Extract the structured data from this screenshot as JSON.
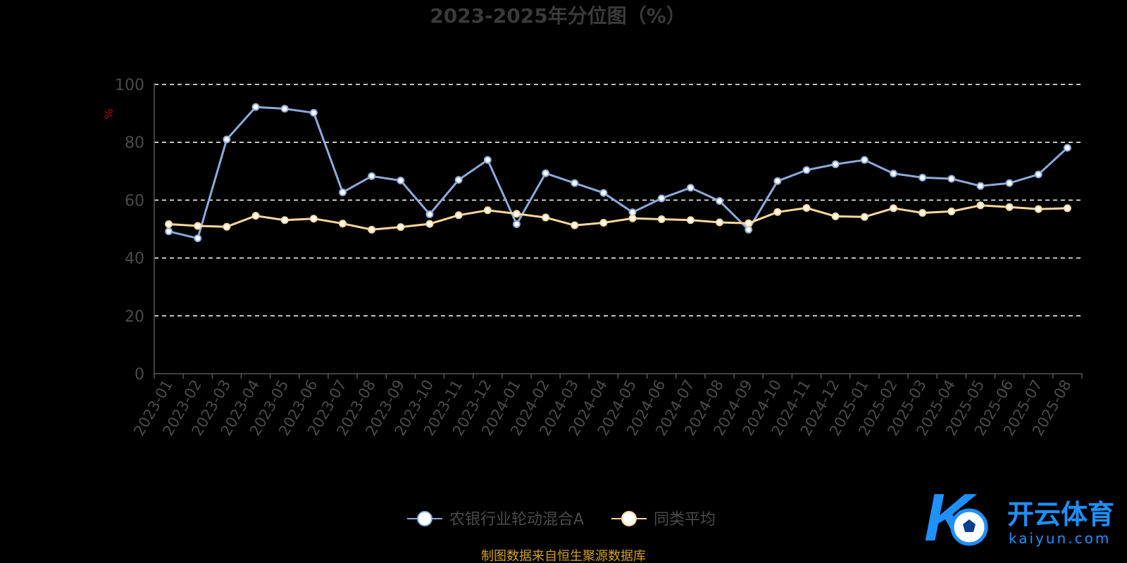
{
  "chart_data": {
    "type": "line",
    "title": "2023-2025年分位图（%）",
    "ylabel": "%",
    "ylim": [
      0,
      100
    ],
    "yticks": [
      0,
      20,
      40,
      60,
      80,
      100
    ],
    "grid": true,
    "legend_position": "bottom",
    "x": [
      "2023-01",
      "2023-02",
      "2023-03",
      "2023-04",
      "2023-05",
      "2023-06",
      "2023-07",
      "2023-08",
      "2023-09",
      "2023-10",
      "2023-11",
      "2023-12",
      "2024-01",
      "2024-02",
      "2024-03",
      "2024-04",
      "2024-05",
      "2024-06",
      "2024-07",
      "2024-08",
      "2024-09",
      "2024-10",
      "2024-11",
      "2024-12",
      "2025-01",
      "2025-02",
      "2025-03",
      "2025-04",
      "2025-05",
      "2025-06",
      "2025-07",
      "2025-08"
    ],
    "series": [
      {
        "name": "农银行业轮动混合A",
        "color": "#8eaadb",
        "values": [
          49.2,
          46.8,
          81.0,
          92.2,
          91.6,
          90.2,
          62.7,
          68.3,
          66.8,
          55.1,
          67.0,
          73.9,
          51.7,
          69.3,
          65.9,
          62.5,
          55.8,
          60.6,
          64.3,
          59.7,
          49.8,
          66.6,
          70.4,
          72.4,
          73.9,
          69.2,
          67.8,
          67.4,
          64.9,
          65.9,
          68.9,
          78.1
        ]
      },
      {
        "name": "同类平均",
        "color": "#fbd79b",
        "values": [
          51.7,
          51.1,
          50.8,
          54.6,
          53.1,
          53.6,
          51.9,
          49.8,
          50.7,
          51.8,
          54.8,
          56.5,
          55.3,
          54.0,
          51.3,
          52.2,
          53.7,
          53.4,
          53.1,
          52.3,
          52.0,
          55.9,
          57.3,
          54.4,
          54.2,
          57.2,
          55.6,
          56.1,
          58.2,
          57.6,
          56.9,
          57.2
        ]
      }
    ]
  },
  "source_note": "制图数据来自恒生聚源数据库",
  "watermark": {
    "brand_cn": "开云体育",
    "brand_en": "kaiyun.com",
    "icon": "kaiyun-soccer-logo-icon"
  }
}
